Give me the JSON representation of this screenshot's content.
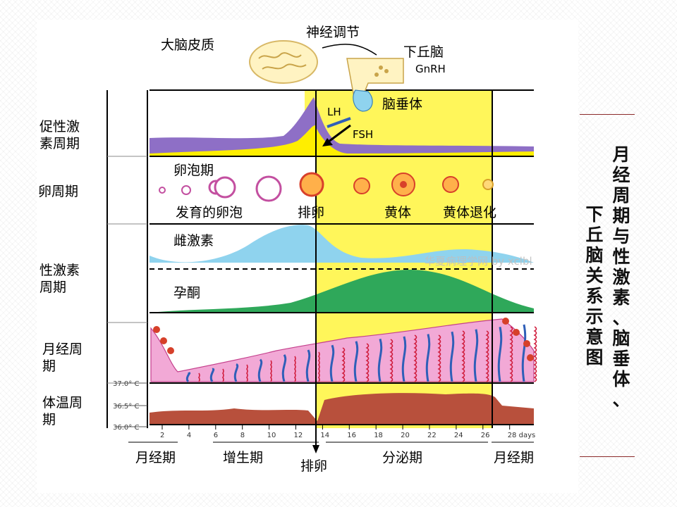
{
  "colors": {
    "purple": "#8e6fc6",
    "yellow": "#fff65a",
    "yellow_bright": "#ffee00",
    "blue": "#8fd3ee",
    "green": "#2fa85a",
    "pink": "#f2a9d6",
    "red": "#b8503c",
    "vessel": "#2f5fb8",
    "accent_rule": "#8b2a2a"
  },
  "top": {
    "brain_cortex": "大脑皮质",
    "neural_regulation": "神经调节",
    "hypothalamus": "下丘脑",
    "gnrh": "GnRH",
    "pituitary": "脑垂体",
    "lh": "LH",
    "fsh": "FSH"
  },
  "rows": {
    "gonadotropin": "促性激\n素周期",
    "ovarian": "卵周期",
    "sex_hormone": "性激素\n周期",
    "menstrual": "月经周\n期",
    "temperature": "体温周\n期"
  },
  "ovary": {
    "follicular_phase": "卵泡期",
    "developing_follicle": "发育的卵泡",
    "ovulation": "排卵",
    "corpus_luteum": "黄体",
    "luteal_regression": "黄体退化"
  },
  "hormones": {
    "estrogen": "雌激素",
    "progesterone": "孕酮"
  },
  "temp_ticks": [
    "37.0° C",
    "36.5° C",
    "36.0° C"
  ],
  "days": [
    "2",
    "4",
    "6",
    "8",
    "10",
    "12",
    "14",
    "16",
    "18",
    "20",
    "22",
    "24",
    "26",
    "28 days"
  ],
  "phases": {
    "menstrual_1": "月经期",
    "proliferative": "增生期",
    "ovulation": "排卵",
    "secretory": "分泌期",
    "menstrual_2": "月经期"
  },
  "watermark": "华夏病理学网 by xclbl",
  "side_title": {
    "col1": "月经周期与性激素、脑垂体、",
    "col2": "下丘脑关系示意图"
  }
}
